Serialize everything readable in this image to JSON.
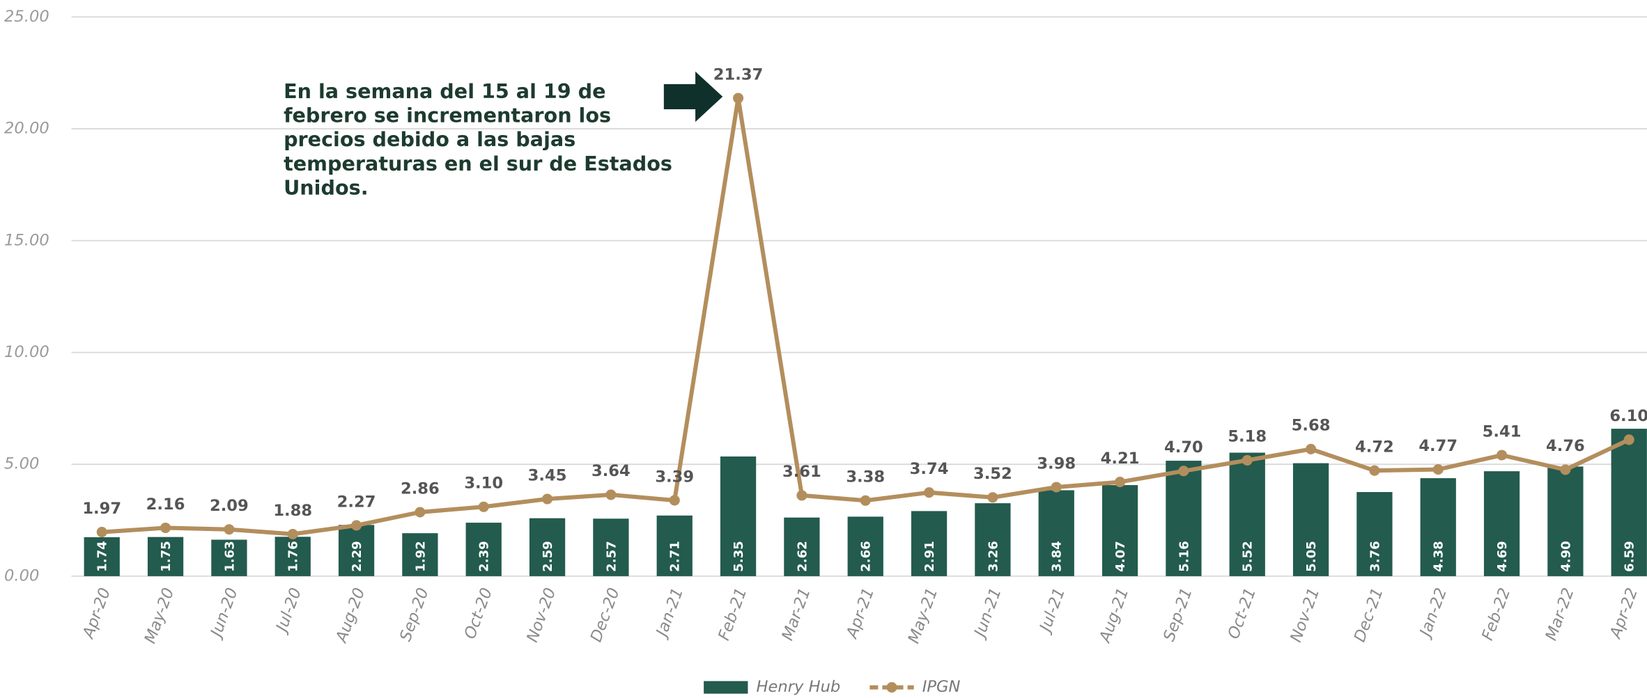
{
  "chart_data": {
    "type": "bar_line",
    "categories": [
      "Apr-20",
      "May-20",
      "Jun-20",
      "Jul-20",
      "Aug-20",
      "Sep-20",
      "Oct-20",
      "Nov-20",
      "Dec-20",
      "Jan-21",
      "Feb-21",
      "Mar-21",
      "Apr-21",
      "May-21",
      "Jun-21",
      "Jul-21",
      "Aug-21",
      "Sep-21",
      "Oct-21",
      "Nov-21",
      "Dec-21",
      "Jan-22",
      "Feb-22",
      "Mar-22",
      "Apr-22"
    ],
    "series": [
      {
        "name": "Henry Hub",
        "type": "bar",
        "color": "#235b4e",
        "values": [
          1.74,
          1.75,
          1.63,
          1.76,
          2.29,
          1.92,
          2.39,
          2.59,
          2.57,
          2.71,
          5.35,
          2.62,
          2.66,
          2.91,
          3.26,
          3.84,
          4.07,
          5.16,
          5.52,
          5.05,
          3.76,
          4.38,
          4.69,
          4.9,
          6.59
        ],
        "value_labels": [
          "1.74",
          "1.75",
          "1.63",
          "1.76",
          "2.29",
          "1.92",
          "2.39",
          "2.59",
          "2.57",
          "2.71",
          "5.35",
          "2.62",
          "2.66",
          "2.91",
          "3.26",
          "3.84",
          "4.07",
          "5.16",
          "5.52",
          "5.05",
          "3.76",
          "4.38",
          "4.69",
          "4.90",
          "6.59"
        ]
      },
      {
        "name": "IPGN",
        "type": "line",
        "color": "#b38e5d",
        "values": [
          1.97,
          2.16,
          2.09,
          1.88,
          2.27,
          2.86,
          3.1,
          3.45,
          3.64,
          3.39,
          21.37,
          3.61,
          3.38,
          3.74,
          3.52,
          3.98,
          4.21,
          4.7,
          5.18,
          5.68,
          4.72,
          4.77,
          5.41,
          4.76,
          6.1
        ],
        "value_labels": [
          "1.97",
          "2.16",
          "2.09",
          "1.88",
          "2.27",
          "2.86",
          "3.10",
          "3.45",
          "3.64",
          "3.39",
          "21.37",
          "3.61",
          "3.38",
          "3.74",
          "3.52",
          "3.98",
          "4.21",
          "4.70",
          "5.18",
          "5.68",
          "4.72",
          "4.77",
          "5.41",
          "4.76",
          "6.10"
        ]
      }
    ],
    "ylim": [
      0,
      25
    ],
    "yticks": [
      {
        "value": 0,
        "label": "0.00"
      },
      {
        "value": 5,
        "label": "5.00"
      },
      {
        "value": 10,
        "label": "10.00"
      },
      {
        "value": 15,
        "label": "15.00"
      },
      {
        "value": 20,
        "label": "20.00"
      },
      {
        "value": 25,
        "label": "25.00"
      }
    ],
    "grid": true,
    "legend": "bottom",
    "annotation": [
      "En la semana del 15 al 19 de",
      "febrero se incrementaron los",
      "precios debido a las bajas",
      "temperaturas en el sur de Estados",
      "Unidos."
    ]
  }
}
